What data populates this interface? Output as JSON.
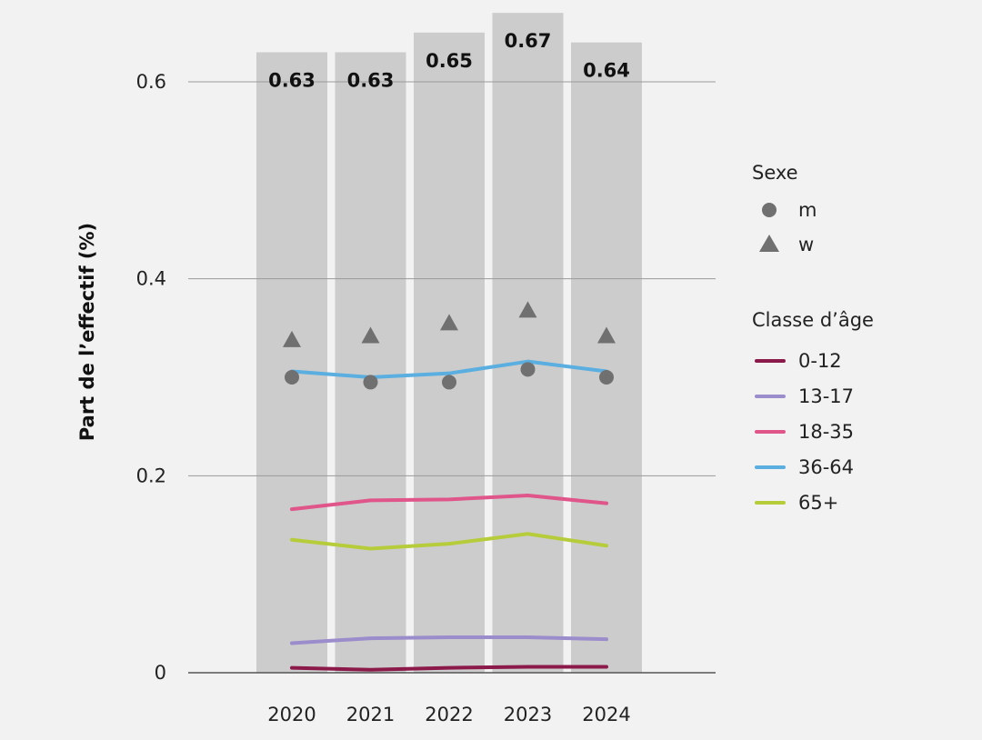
{
  "chart_data": {
    "type": "bar",
    "ylabel": "Part de l’effectif (%)",
    "xlabel": "",
    "categories": [
      "2020",
      "2021",
      "2022",
      "2023",
      "2024"
    ],
    "ylim": [
      0,
      0.6
    ],
    "yticks": [
      "0",
      "0.2",
      "0.4",
      "0.6"
    ],
    "grid": "horizontal",
    "bars": {
      "values": [
        0.63,
        0.63,
        0.65,
        0.67,
        0.64
      ],
      "labels": [
        "0.63",
        "0.63",
        "0.65",
        "0.67",
        "0.64"
      ],
      "color": "#cccccc"
    },
    "sex_markers": [
      {
        "name": "m",
        "shape": "circle",
        "color": "#707070",
        "values": [
          0.3,
          0.295,
          0.295,
          0.308,
          0.3
        ]
      },
      {
        "name": "w",
        "shape": "triangle",
        "color": "#707070",
        "values": [
          0.338,
          0.342,
          0.355,
          0.368,
          0.342
        ]
      }
    ],
    "age_series": [
      {
        "name": "0-12",
        "color": "#8b1a4a",
        "values": [
          0.005,
          0.003,
          0.005,
          0.006,
          0.006
        ]
      },
      {
        "name": "13-17",
        "color": "#9b8ccc",
        "values": [
          0.03,
          0.035,
          0.036,
          0.036,
          0.034
        ]
      },
      {
        "name": "18-35",
        "color": "#e0558a",
        "values": [
          0.166,
          0.175,
          0.176,
          0.18,
          0.172
        ]
      },
      {
        "name": "36-64",
        "color": "#5aaee0",
        "values": [
          0.306,
          0.3,
          0.304,
          0.316,
          0.306
        ]
      },
      {
        "name": "65+",
        "color": "#b7cc3a",
        "values": [
          0.135,
          0.126,
          0.131,
          0.141,
          0.129
        ]
      }
    ],
    "legend": {
      "placement": "right",
      "sex_title": "Sexe",
      "age_title": "Classe d’âge"
    }
  }
}
